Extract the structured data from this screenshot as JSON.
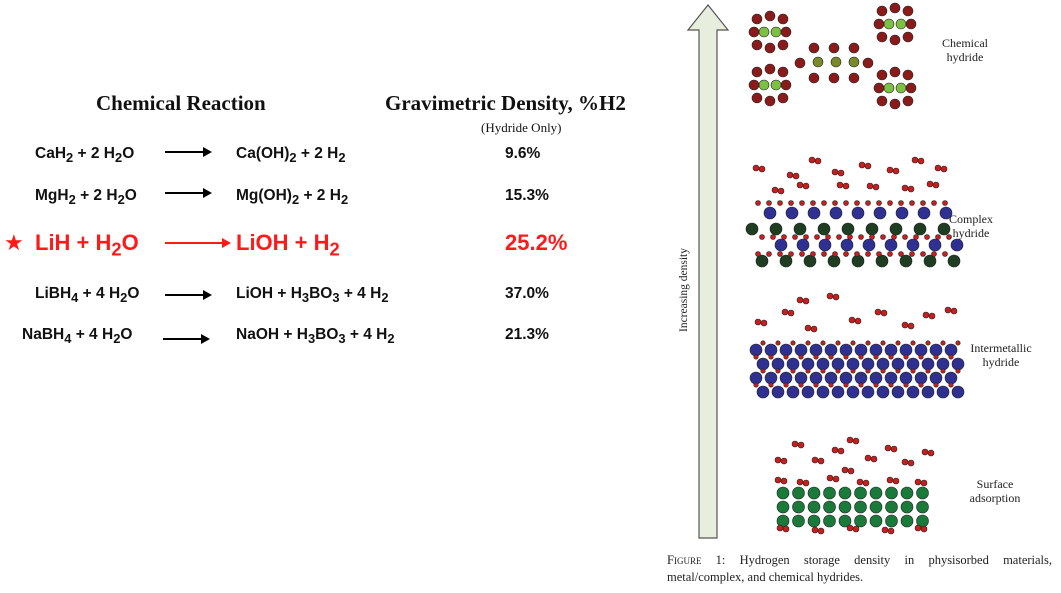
{
  "table": {
    "header_reaction": "Chemical Reaction",
    "header_density": "Gravimetric Density, %H2",
    "header_density_sub": "(Hydride Only)",
    "rows": [
      {
        "reactants": "CaH2 + 2 H2O",
        "products": "Ca(OH)2 + 2 H2",
        "density": "9.6%",
        "highlighted": false
      },
      {
        "reactants": "MgH2 + 2 H2O",
        "products": "Mg(OH)2 + 2 H2",
        "density": "15.3%",
        "highlighted": false
      },
      {
        "reactants": "LiH + H2O",
        "products": "LiOH + H2",
        "density": "25.2%",
        "highlighted": true
      },
      {
        "reactants": "LiBH4 + 4 H2O",
        "products": "LiOH + H3BO3 + 4 H2",
        "density": "37.0%",
        "highlighted": false
      },
      {
        "reactants": "NaBH4 + 4 H2O",
        "products": "NaOH + H3BO3 + 4 H2",
        "density": "21.3%",
        "highlighted": false
      }
    ],
    "highlight_color": "#ff1a1a",
    "highlight_marker": "star-icon"
  },
  "figure": {
    "axis_label": "Increasing density",
    "levels": [
      {
        "label_line1": "Chemical",
        "label_line2": "hydride"
      },
      {
        "label_line1": "Complex",
        "label_line2": "hydride"
      },
      {
        "label_line1": "Intermetallic",
        "label_line2": "hydride"
      },
      {
        "label_line1": "Surface",
        "label_line2": "adsorption"
      }
    ],
    "caption_prefix": "Figure 1:",
    "caption_text": "Hydrogen storage density in physisorbed materials, metal/complex, and chemical hydrides.",
    "colors": {
      "hydrogen": "#c81e1e",
      "chemical_outer": "#8b1a1a",
      "chemical_inner": "#7dc142",
      "chemical_mid": "#7a8a2a",
      "complex_blue": "#2e3192",
      "complex_dark": "#1f3d20",
      "intermetallic": "#2e3192",
      "surface": "#1a7a3a",
      "arrow_fill": "#e8eedd"
    }
  }
}
